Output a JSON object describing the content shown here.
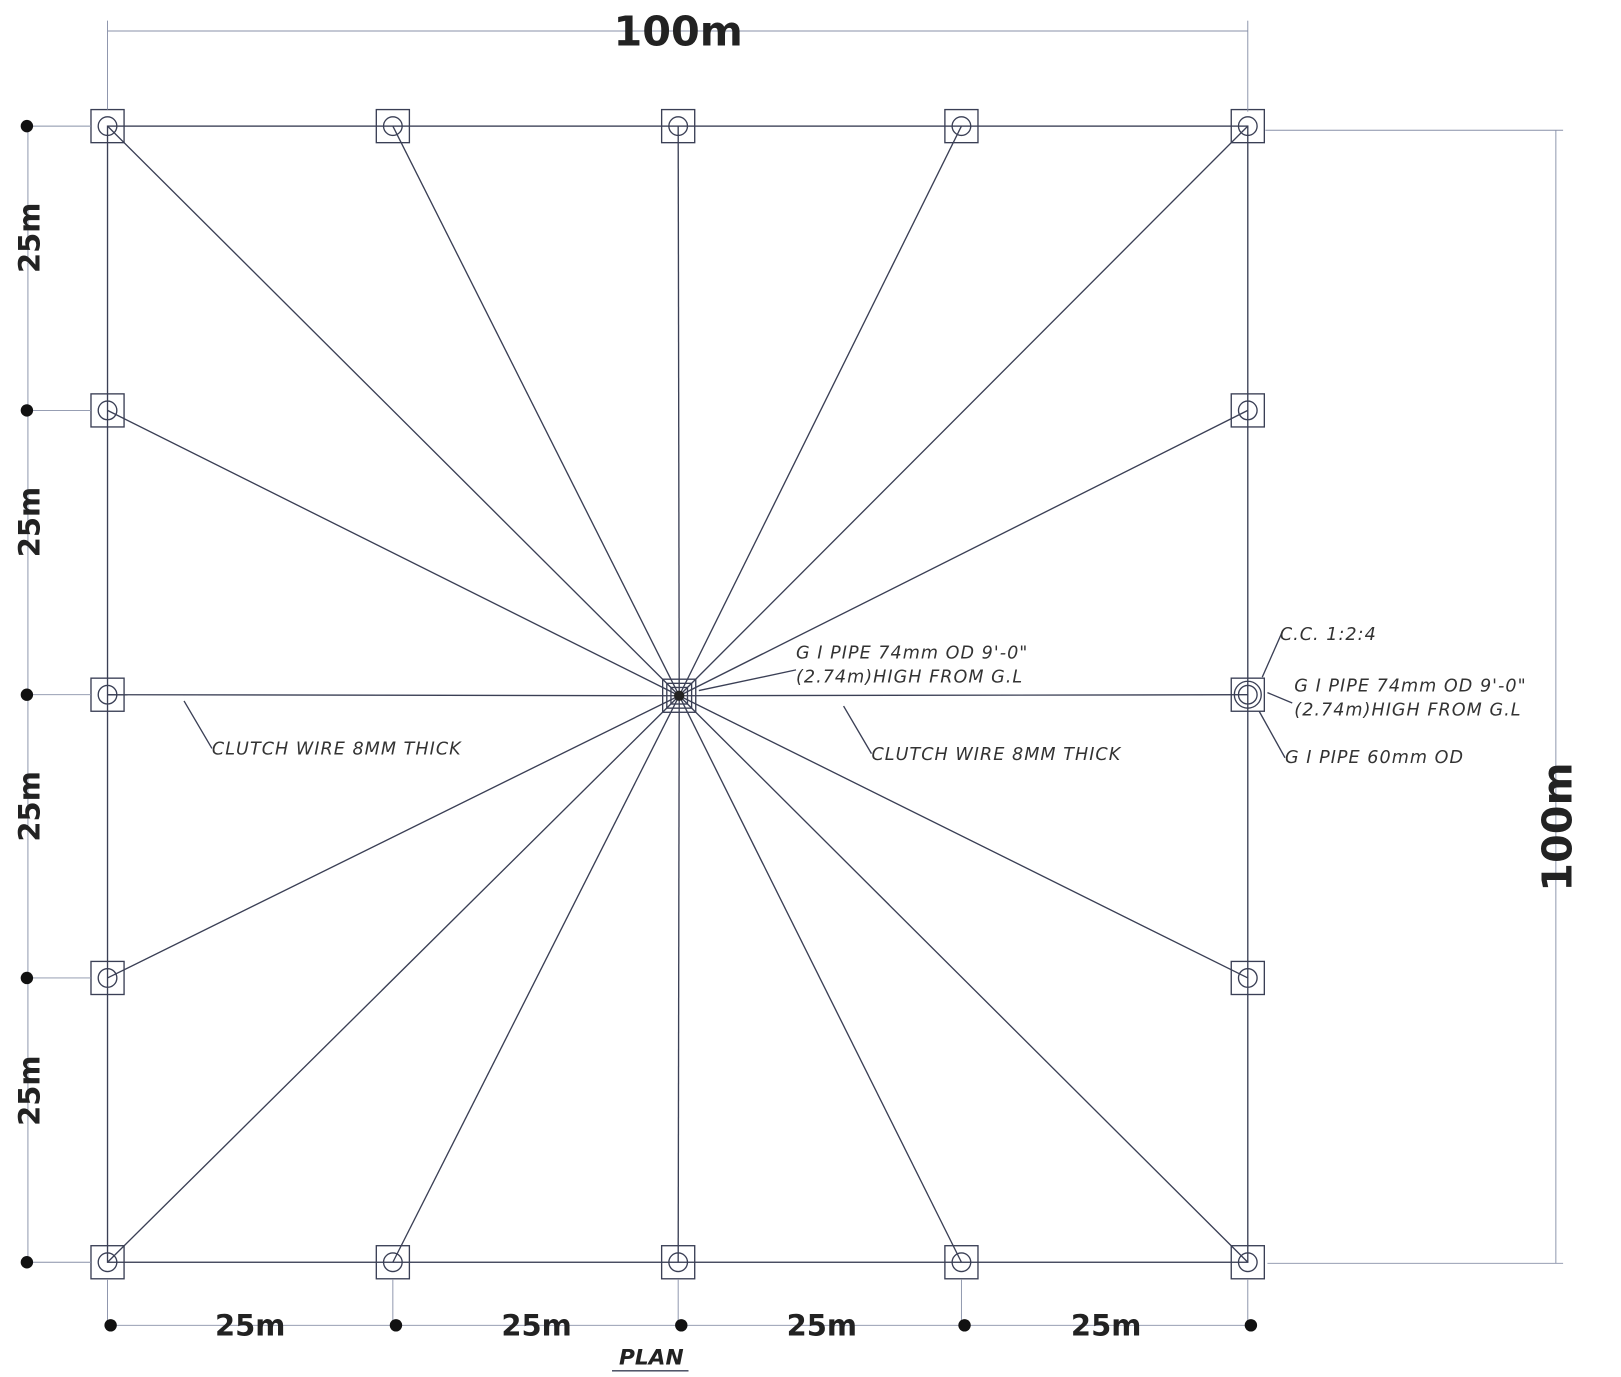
{
  "dimensions": {
    "top": "100m",
    "right": "100m",
    "left": [
      "25m",
      "25m",
      "25m",
      "25m"
    ],
    "bottom": [
      "25m",
      "25m",
      "25m",
      "25m"
    ]
  },
  "annotations": {
    "center_pipe": [
      "G I PIPE 74mm OD 9'-0\"",
      "(2.74m)HIGH FROM G.L"
    ],
    "clutch_wire_left": "CLUTCH WIRE 8MM THICK",
    "clutch_wire_right": "CLUTCH WIRE 8MM THICK",
    "concrete": "C.C. 1:2:4",
    "edge_pipe": [
      "G I PIPE 74mm OD 9'-0\"",
      "(2.74m)HIGH FROM G.L"
    ],
    "inner_pipe": "G I PIPE 60mm OD"
  },
  "title": "PLAN"
}
